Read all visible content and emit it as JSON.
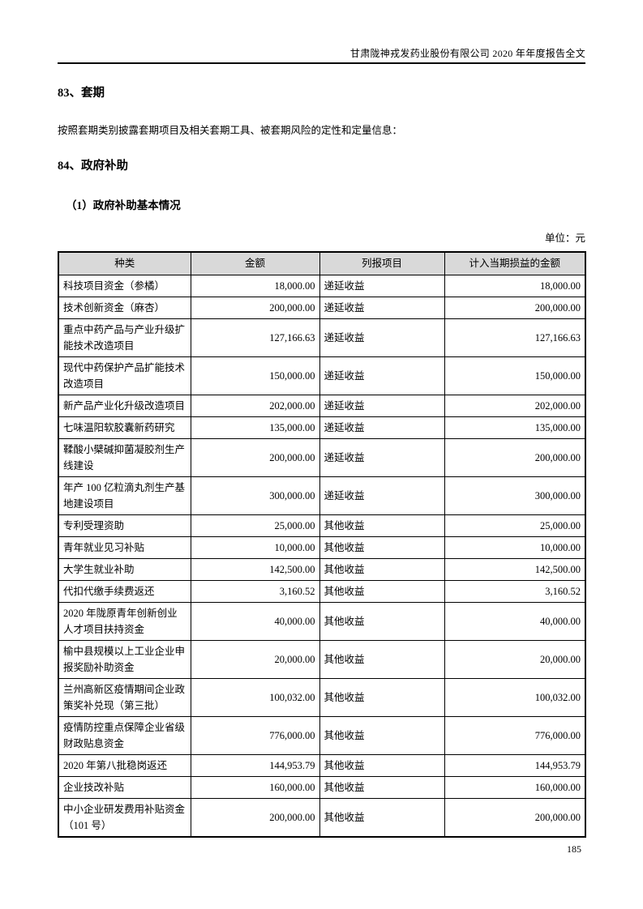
{
  "document": {
    "header_title": "甘肃陇神戎发药业股份有限公司 2020 年年度报告全文",
    "page_number": "185"
  },
  "section_83": {
    "title": "83、套期",
    "body": "按照套期类别披露套期项目及相关套期工具、被套期风险的定性和定量信息："
  },
  "section_84": {
    "title": "84、政府补助",
    "subsection_title": "（1）政府补助基本情况",
    "unit_note": "单位：元"
  },
  "subsidy_table": {
    "headers": [
      "种类",
      "金额",
      "列报项目",
      "计入当期损益的金额"
    ],
    "rows": [
      [
        "科技项目资金（参橘）",
        "18,000.00",
        "递延收益",
        "18,000.00"
      ],
      [
        "技术创新资金（麻杏）",
        "200,000.00",
        "递延收益",
        "200,000.00"
      ],
      [
        "重点中药产品与产业升级扩能技术改造项目",
        "127,166.63",
        "递延收益",
        "127,166.63"
      ],
      [
        "现代中药保护产品扩能技术改造项目",
        "150,000.00",
        "递延收益",
        "150,000.00"
      ],
      [
        "新产品产业化升级改造项目",
        "202,000.00",
        "递延收益",
        "202,000.00"
      ],
      [
        "七味温阳软胶囊新药研究",
        "135,000.00",
        "递延收益",
        "135,000.00"
      ],
      [
        "鞣酸小檗碱抑菌凝胶剂生产线建设",
        "200,000.00",
        "递延收益",
        "200,000.00"
      ],
      [
        "年产 100 亿粒滴丸剂生产基地建设项目",
        "300,000.00",
        "递延收益",
        "300,000.00"
      ],
      [
        "专利受理资助",
        "25,000.00",
        "其他收益",
        "25,000.00"
      ],
      [
        "青年就业见习补贴",
        "10,000.00",
        "其他收益",
        "10,000.00"
      ],
      [
        "大学生就业补助",
        "142,500.00",
        "其他收益",
        "142,500.00"
      ],
      [
        "代扣代缴手续费返还",
        "3,160.52",
        "其他收益",
        "3,160.52"
      ],
      [
        "2020 年陇原青年创新创业人才项目扶持资金",
        "40,000.00",
        "其他收益",
        "40,000.00"
      ],
      [
        "榆中县规模以上工业企业申报奖励补助资金",
        "20,000.00",
        "其他收益",
        "20,000.00"
      ],
      [
        "兰州高新区疫情期间企业政策奖补兑现（第三批）",
        "100,032.00",
        "其他收益",
        "100,032.00"
      ],
      [
        "疫情防控重点保障企业省级财政贴息资金",
        "776,000.00",
        "其他收益",
        "776,000.00"
      ],
      [
        "2020 年第八批稳岗返还",
        "144,953.79",
        "其他收益",
        "144,953.79"
      ],
      [
        "企业技改补贴",
        "160,000.00",
        "其他收益",
        "160,000.00"
      ],
      [
        "中小企业研发费用补贴资金（101 号）",
        "200,000.00",
        "其他收益",
        "200,000.00"
      ]
    ]
  },
  "colors": {
    "table_header_bg": "#d9d9d9",
    "border": "#000000",
    "text": "#000000"
  }
}
